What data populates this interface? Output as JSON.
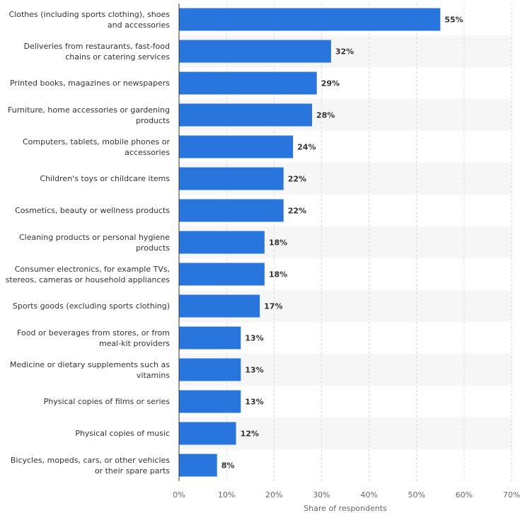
{
  "chart_data": {
    "type": "bar",
    "orientation": "horizontal",
    "categories": [
      "Clothes (including sports clothing), shoes and accessories",
      "Deliveries from restaurants, fast-food chains or catering services",
      "Printed books, magazines or newspapers",
      "Furniture, home accessories or gardening products",
      "Computers, tablets, mobile phones or accessories",
      "Children's toys or childcare items",
      "Cosmetics, beauty or wellness products",
      "Cleaning products or personal hygiene products",
      "Consumer electronics, for example TVs, stereos, cameras or household appliances",
      "Sports goods (excluding sports clothing)",
      "Food or beverages from stores, or from meal-kit providers",
      "Medicine or dietary supplements such as vitamins",
      "Physical copies of films or series",
      "Physical copies of music",
      "Bicycles, mopeds, cars, or other vehicles or their spare parts"
    ],
    "values": [
      55,
      32,
      29,
      28,
      24,
      22,
      22,
      18,
      18,
      17,
      13,
      13,
      13,
      12,
      8
    ],
    "value_labels": [
      "55%",
      "32%",
      "29%",
      "28%",
      "24%",
      "22%",
      "22%",
      "18%",
      "18%",
      "17%",
      "13%",
      "13%",
      "13%",
      "12%",
      "8%"
    ],
    "color": "#2876dd",
    "xlim": [
      0,
      70
    ],
    "xticks": [
      {
        "value": 0,
        "label": "0%"
      },
      {
        "value": 10,
        "label": "10%"
      },
      {
        "value": 20,
        "label": "20%"
      },
      {
        "value": 30,
        "label": "30%"
      },
      {
        "value": 40,
        "label": "40%"
      },
      {
        "value": 50,
        "label": "50%"
      },
      {
        "value": 60,
        "label": "60%"
      },
      {
        "value": 70,
        "label": "70%"
      }
    ],
    "xlabel": "Share of respondents",
    "grid": true
  }
}
